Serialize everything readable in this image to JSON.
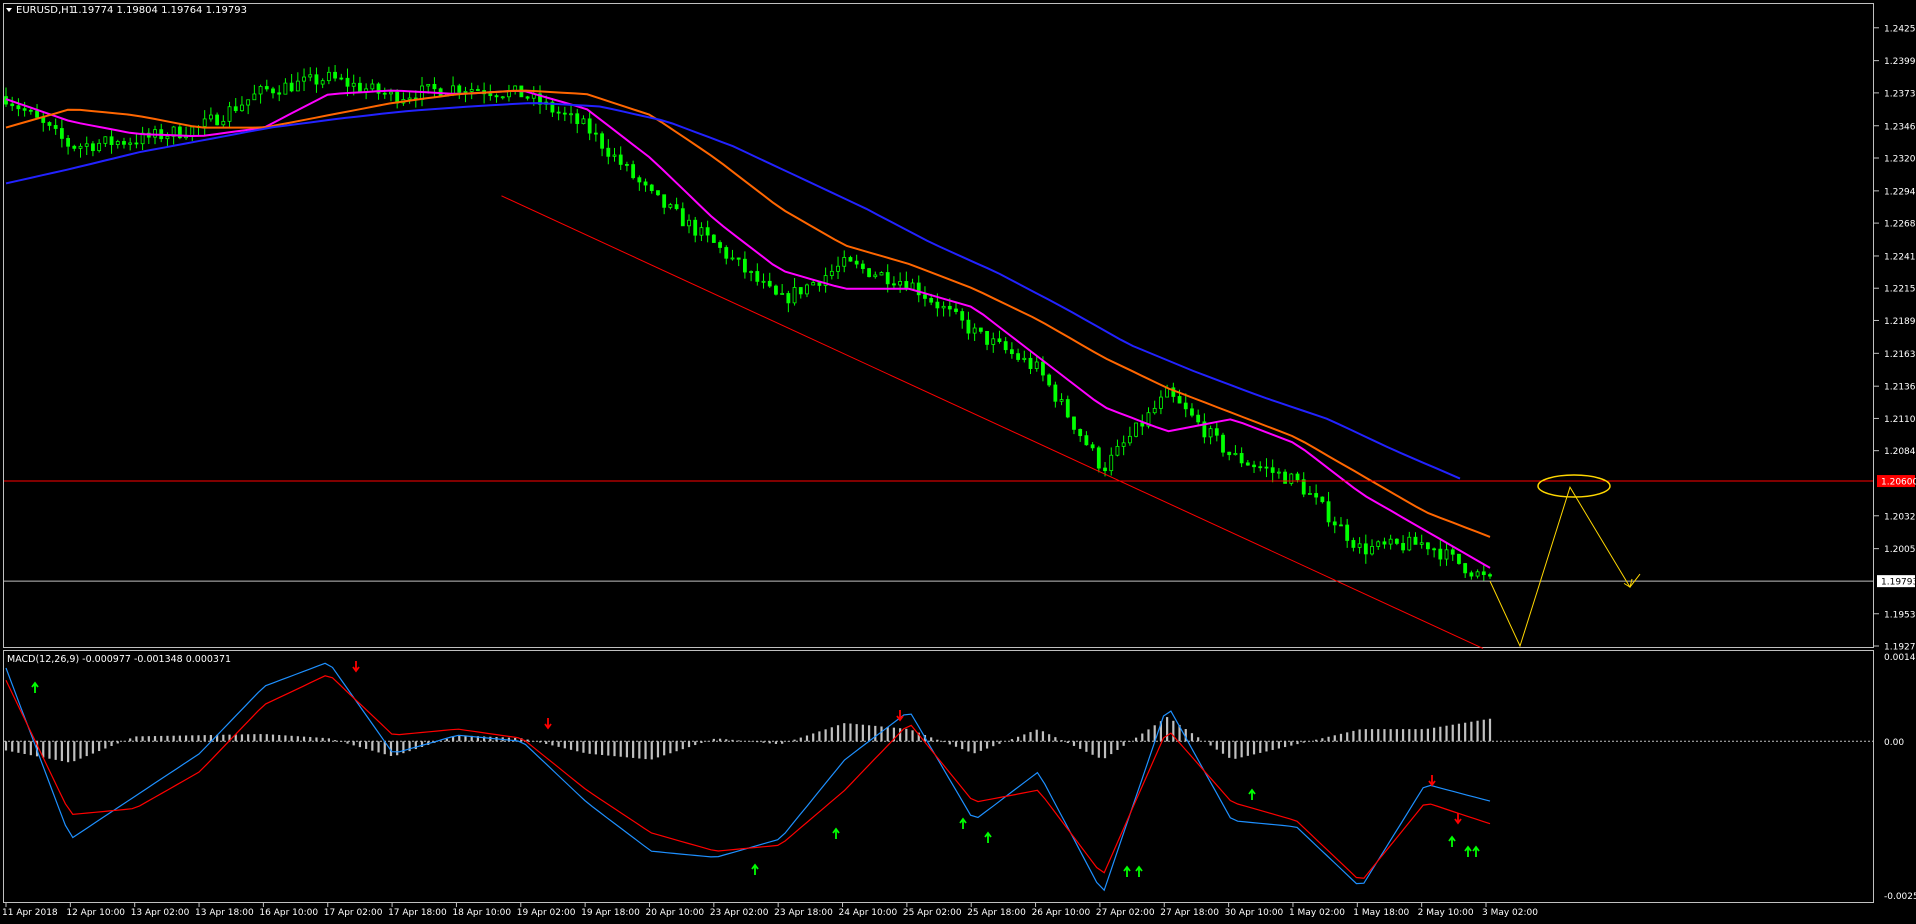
{
  "main": {
    "header": {
      "symbol": "EURUSD,H1",
      "ohlc": "1.19774 1.19804 1.19764 1.19793"
    },
    "price_labels": [
      "1.24255",
      "1.23990",
      "1.23730",
      "1.23465",
      "1.23205",
      "1.22940",
      "1.22680",
      "1.22415",
      "1.22155",
      "1.21895",
      "1.21630",
      "1.21365",
      "1.21105",
      "1.20845",
      "1.20320",
      "1.20055",
      "1.19530",
      "1.19270"
    ],
    "hline_label": "1.20600",
    "current_price_label": "1.19793"
  },
  "macd": {
    "header": "MACD(12,26,9) -0.000977 -0.001348 0.000371",
    "labels": [
      "0.00143",
      "0.00",
      "-0.002599"
    ]
  },
  "time_labels": [
    "11 Apr 2018",
    "12 Apr 10:00",
    "13 Apr 02:00",
    "13 Apr 18:00",
    "16 Apr 10:00",
    "17 Apr 02:00",
    "17 Apr 18:00",
    "18 Apr 10:00",
    "19 Apr 02:00",
    "19 Apr 18:00",
    "20 Apr 10:00",
    "23 Apr 02:00",
    "23 Apr 18:00",
    "24 Apr 10:00",
    "25 Apr 02:00",
    "25 Apr 18:00",
    "26 Apr 10:00",
    "27 Apr 02:00",
    "27 Apr 18:00",
    "30 Apr 10:00",
    "1 May 02:00",
    "1 May 18:00",
    "2 May 10:00",
    "3 May 02:00"
  ],
  "colors": {
    "background": "#000000",
    "candles": "#00ff00",
    "ma_fast": "#ff00ff",
    "ma_mid": "#ff6600",
    "ma_slow": "#2222ff",
    "channel": "#ff0000",
    "projection": "#ffd700",
    "macd_main": "#1e90ff",
    "macd_signal": "#ff0000",
    "histogram": "#c0c0c0"
  },
  "chart_data": [
    {
      "type": "line",
      "x": [
        "11 Apr 2018",
        "12 Apr 10:00",
        "13 Apr 02:00",
        "13 Apr 18:00",
        "16 Apr 10:00",
        "17 Apr 02:00",
        "17 Apr 18:00",
        "18 Apr 10:00",
        "19 Apr 02:00",
        "19 Apr 18:00",
        "20 Apr 10:00",
        "23 Apr 02:00",
        "23 Apr 18:00",
        "24 Apr 10:00",
        "25 Apr 02:00",
        "25 Apr 18:00",
        "26 Apr 10:00",
        "27 Apr 02:00",
        "27 Apr 18:00",
        "30 Apr 10:00",
        "1 May 02:00",
        "1 May 18:00",
        "2 May 10:00",
        "3 May 02:00"
      ],
      "series": [
        {
          "values": [
            1.237,
            1.233,
            1.2335,
            1.2345,
            1.2375,
            1.2385,
            1.237,
            1.2378,
            1.2372,
            1.2345,
            1.229,
            1.225,
            1.2205,
            1.2235,
            1.222,
            1.218,
            1.215,
            1.207,
            1.213,
            1.208,
            1.206,
            1.2005,
            1.201,
            1.1979
          ]
        },
        {
          "values": [
            1.2368,
            1.235,
            1.234,
            1.2338,
            1.2345,
            1.2372,
            1.2375,
            1.2372,
            1.2375,
            1.236,
            1.232,
            1.227,
            1.223,
            1.2215,
            1.2215,
            1.22,
            1.216,
            1.212,
            1.21,
            1.211,
            1.209,
            1.205,
            1.202,
            1.199
          ]
        },
        {
          "values": [
            1.2345,
            1.236,
            1.2355,
            1.2345,
            1.2345,
            1.2355,
            1.2365,
            1.2372,
            1.2375,
            1.2372,
            1.2355,
            1.232,
            1.228,
            1.225,
            1.2235,
            1.2215,
            1.219,
            1.216,
            1.2135,
            1.2115,
            1.2095,
            1.2065,
            1.2035,
            1.2015
          ]
        },
        {
          "values": [
            1.23,
            1.2312,
            1.2325,
            1.2335,
            1.2345,
            1.2352,
            1.2358,
            1.2362,
            1.2365,
            1.2362,
            1.235,
            1.233,
            1.2305,
            1.228,
            1.2252,
            1.2228,
            1.22,
            1.217,
            1.2148,
            1.2128,
            1.211,
            1.2085,
            1.2062,
            null
          ]
        }
      ],
      "ylim": [
        1.1927,
        1.2435
      ],
      "hline": 1.206,
      "current_price": 1.19793
    },
    {
      "type": "bar",
      "x": [
        "11 Apr 2018",
        "12 Apr 10:00",
        "13 Apr 02:00",
        "13 Apr 18:00",
        "16 Apr 10:00",
        "17 Apr 02:00",
        "17 Apr 18:00",
        "18 Apr 10:00",
        "19 Apr 02:00",
        "19 Apr 18:00",
        "20 Apr 10:00",
        "23 Apr 02:00",
        "23 Apr 18:00",
        "24 Apr 10:00",
        "25 Apr 02:00",
        "25 Apr 18:00",
        "26 Apr 10:00",
        "27 Apr 02:00",
        "27 Apr 18:00",
        "30 Apr 10:00",
        "1 May 02:00",
        "1 May 18:00",
        "2 May 10:00",
        "3 May 02:00"
      ],
      "histogram": [
        -0.00015,
        -0.00035,
        8e-05,
        0.0001,
        0.00012,
        5e-05,
        -0.00025,
        0.0001,
        5e-05,
        -0.0002,
        -0.0003,
        5e-05,
        -5e-05,
        0.0003,
        0.0002,
        -0.0002,
        0.0002,
        -0.0003,
        0.0004,
        -0.0003,
        -5e-05,
        0.0002,
        0.0002,
        0.00037
      ],
      "macd": [
        0.0012,
        -0.0016,
        -0.0009,
        -0.0002,
        0.0009,
        0.0013,
        -0.0002,
        0.0001,
        0.0,
        -0.001,
        -0.0018,
        -0.0019,
        -0.0016,
        -0.0003,
        0.0005,
        -0.0013,
        -0.0005,
        -0.0025,
        0.0006,
        -0.0013,
        -0.0014,
        -0.0024,
        -0.0007,
        -0.00098
      ],
      "signal": [
        0.001,
        -0.0012,
        -0.0011,
        -0.0005,
        0.0006,
        0.0011,
        0.0001,
        0.0002,
        5e-05,
        -0.0008,
        -0.0015,
        -0.0018,
        -0.0017,
        -0.0008,
        0.0003,
        -0.001,
        -0.0008,
        -0.0022,
        0.0002,
        -0.001,
        -0.0013,
        -0.0023,
        -0.001,
        -0.00135
      ],
      "ylim": [
        -0.002599,
        0.00143
      ]
    }
  ]
}
